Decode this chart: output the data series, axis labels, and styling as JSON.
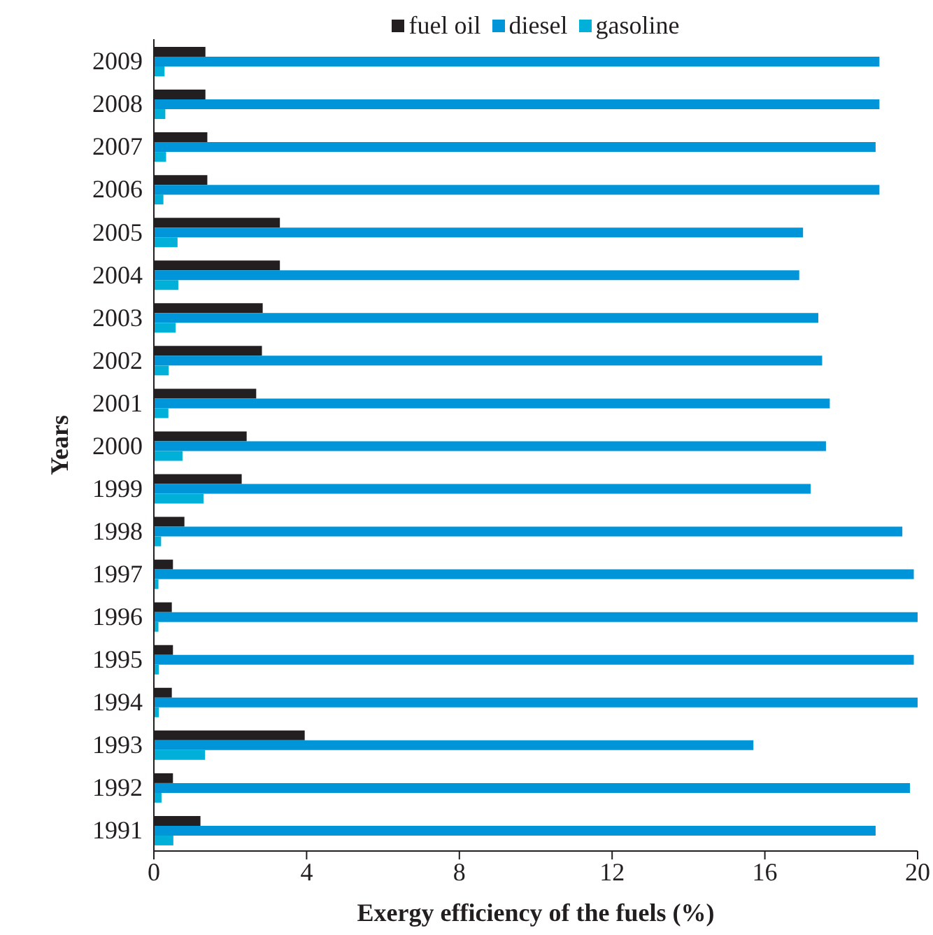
{
  "chart_data": {
    "type": "bar",
    "orientation": "horizontal",
    "xlabel": "Exergy efficiency of the fuels (%)",
    "ylabel": "Years",
    "categories": [
      "2009",
      "2008",
      "2007",
      "2006",
      "2005",
      "2004",
      "2003",
      "2002",
      "2001",
      "2000",
      "1999",
      "1998",
      "1997",
      "1996",
      "1995",
      "1994",
      "1993",
      "1992",
      "1991"
    ],
    "series": [
      {
        "name": "fuel oil",
        "color": "#231f20",
        "values": [
          1.35,
          1.35,
          1.4,
          1.4,
          3.3,
          3.3,
          2.85,
          2.83,
          2.68,
          2.43,
          2.3,
          0.8,
          0.5,
          0.47,
          0.5,
          0.47,
          3.95,
          0.5,
          1.22
        ]
      },
      {
        "name": "diesel",
        "color": "#0095d9",
        "values": [
          19.0,
          19.0,
          18.9,
          19.0,
          17.0,
          16.9,
          17.4,
          17.5,
          17.7,
          17.6,
          17.2,
          19.6,
          19.9,
          20.0,
          19.9,
          20.0,
          15.7,
          19.8,
          18.9
        ]
      },
      {
        "name": "gasoline",
        "color": "#00b0d8",
        "values": [
          0.28,
          0.3,
          0.32,
          0.25,
          0.62,
          0.64,
          0.57,
          0.39,
          0.38,
          0.75,
          1.3,
          0.19,
          0.12,
          0.12,
          0.13,
          0.13,
          1.34,
          0.2,
          0.51
        ]
      }
    ],
    "xlim": [
      0,
      20
    ],
    "xticks": [
      0,
      4,
      8,
      12,
      16,
      20
    ],
    "legend": "top",
    "grid": false
  }
}
